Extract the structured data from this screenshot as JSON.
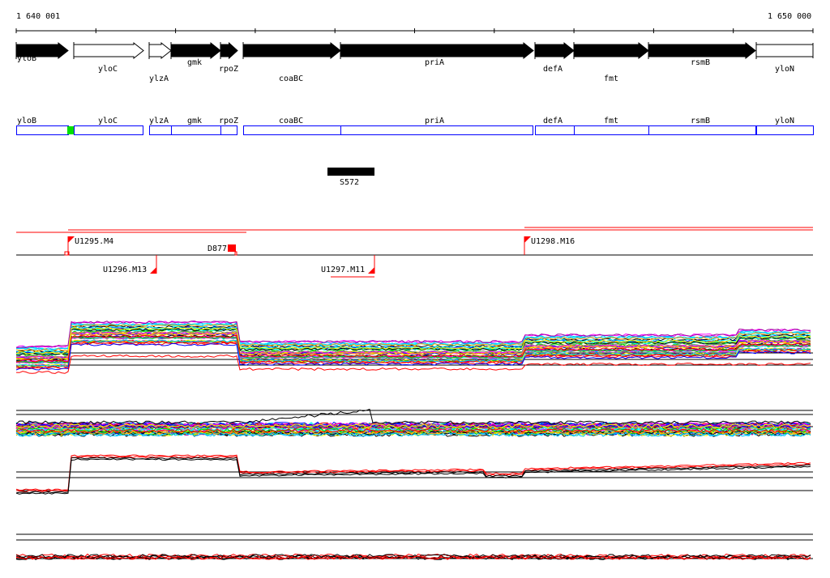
{
  "ruler": {
    "start_label": "1 640 001",
    "end_label": "1 650 000"
  },
  "genes": [
    {
      "name": "yloB",
      "style": "filled"
    },
    {
      "name": "yloC",
      "style": "open"
    },
    {
      "name": "ylzA",
      "style": "open"
    },
    {
      "name": "gmk",
      "style": "filled"
    },
    {
      "name": "rpoZ",
      "style": "filled"
    },
    {
      "name": "coaBC",
      "style": "filled"
    },
    {
      "name": "priA",
      "style": "filled"
    },
    {
      "name": "defA",
      "style": "filled"
    },
    {
      "name": "fmt",
      "style": "filled"
    },
    {
      "name": "rsmB",
      "style": "filled"
    },
    {
      "name": "yloN",
      "style": "open"
    }
  ],
  "feature": {
    "label": "S572"
  },
  "markers": [
    {
      "label": "U1295.M4"
    },
    {
      "label": "D877"
    },
    {
      "label": "U1296.M13"
    },
    {
      "label": "U1297.M11"
    },
    {
      "label": "U1298.M16"
    }
  ],
  "colors": {
    "gene_box": "#0000ff",
    "highlight": "#00e000",
    "marker": "#ff0000"
  }
}
